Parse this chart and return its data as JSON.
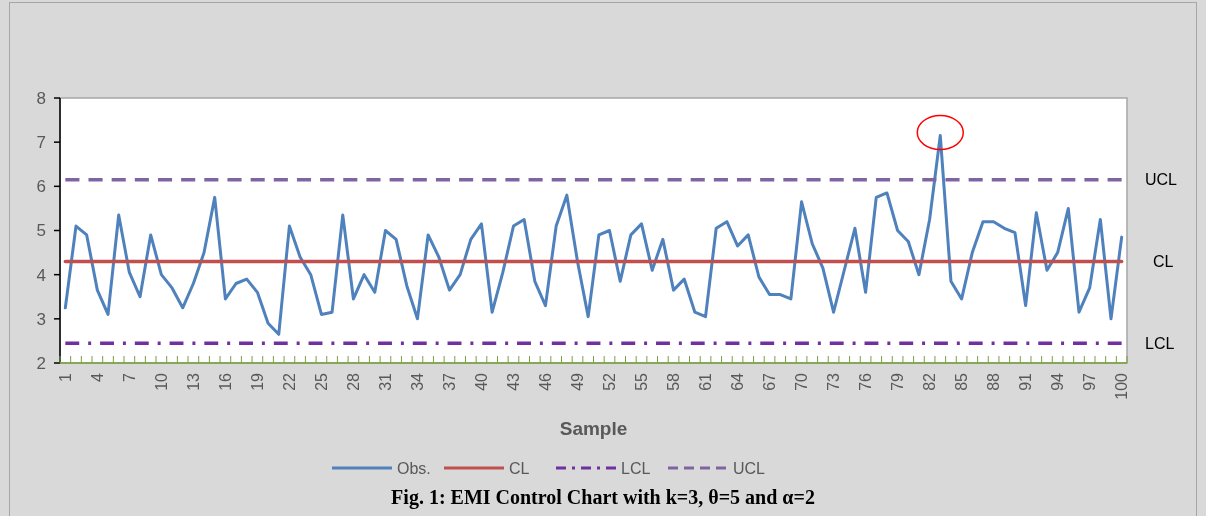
{
  "chart_data": {
    "type": "line",
    "title": "Fig. 1: EMI Control Chart with k=3, θ=5 and α=2",
    "xlabel": "Sample",
    "categories": [
      "1",
      null,
      null,
      "4",
      null,
      null,
      "7",
      null,
      null,
      "10",
      null,
      null,
      "13",
      null,
      null,
      "16",
      null,
      null,
      "19",
      null,
      null,
      "22",
      null,
      null,
      "25",
      null,
      null,
      "28",
      null,
      null,
      "31",
      null,
      null,
      "34",
      null,
      null,
      "37",
      null,
      null,
      "40",
      null,
      null,
      "43",
      null,
      null,
      "46",
      null,
      null,
      "49",
      null,
      null,
      "52",
      null,
      null,
      "55",
      null,
      null,
      "58",
      null,
      null,
      "61",
      null,
      null,
      "64",
      null,
      null,
      "67",
      null,
      null,
      "70",
      null,
      null,
      "73",
      null,
      null,
      "76",
      null,
      null,
      "79",
      null,
      null,
      "82",
      null,
      null,
      "85",
      null,
      null,
      "88",
      null,
      null,
      "91",
      null,
      null,
      "94",
      null,
      null,
      "97",
      null,
      null,
      "100"
    ],
    "series": [
      {
        "name": "Obs.",
        "color": "#4f81bd",
        "line_style": "solid",
        "values": [
          3.25,
          5.1,
          4.9,
          3.65,
          3.1,
          5.35,
          4.05,
          3.5,
          4.9,
          4.0,
          3.7,
          3.25,
          3.8,
          4.5,
          5.75,
          3.45,
          3.8,
          3.9,
          3.6,
          2.9,
          2.65,
          5.1,
          4.4,
          4.0,
          3.1,
          3.15,
          5.35,
          3.45,
          4.0,
          3.6,
          5.0,
          4.8,
          3.75,
          3.0,
          4.9,
          4.4,
          3.65,
          4.0,
          4.8,
          5.15,
          3.15,
          4.05,
          5.1,
          5.25,
          3.85,
          3.3,
          5.1,
          5.8,
          4.3,
          3.05,
          4.9,
          5.0,
          3.85,
          4.9,
          5.15,
          4.1,
          4.8,
          3.65,
          3.9,
          3.15,
          3.05,
          5.05,
          5.2,
          4.65,
          4.9,
          3.95,
          3.55,
          3.55,
          3.45,
          5.65,
          4.7,
          4.15,
          3.15,
          4.1,
          5.05,
          3.6,
          5.75,
          5.85,
          5.0,
          4.75,
          4.0,
          5.25,
          7.15,
          3.85,
          3.45,
          4.5,
          5.2,
          5.2,
          5.05,
          4.95,
          3.3,
          5.4,
          4.1,
          4.5,
          5.5,
          3.15,
          3.7,
          5.25,
          3.0,
          4.85
        ]
      },
      {
        "name": "CL",
        "color": "#c0504d",
        "line_style": "solid",
        "values": [
          4.3,
          4.3,
          4.3,
          4.3,
          4.3,
          4.3,
          4.3,
          4.3,
          4.3,
          4.3,
          4.3,
          4.3,
          4.3,
          4.3,
          4.3,
          4.3,
          4.3,
          4.3,
          4.3,
          4.3,
          4.3,
          4.3,
          4.3,
          4.3,
          4.3,
          4.3,
          4.3,
          4.3,
          4.3,
          4.3,
          4.3,
          4.3,
          4.3,
          4.3,
          4.3,
          4.3,
          4.3,
          4.3,
          4.3,
          4.3,
          4.3,
          4.3,
          4.3,
          4.3,
          4.3,
          4.3,
          4.3,
          4.3,
          4.3,
          4.3,
          4.3,
          4.3,
          4.3,
          4.3,
          4.3,
          4.3,
          4.3,
          4.3,
          4.3,
          4.3,
          4.3,
          4.3,
          4.3,
          4.3,
          4.3,
          4.3,
          4.3,
          4.3,
          4.3,
          4.3,
          4.3,
          4.3,
          4.3,
          4.3,
          4.3,
          4.3,
          4.3,
          4.3,
          4.3,
          4.3,
          4.3,
          4.3,
          4.3,
          4.3,
          4.3,
          4.3,
          4.3,
          4.3,
          4.3,
          4.3,
          4.3,
          4.3,
          4.3,
          4.3,
          4.3,
          4.3,
          4.3,
          4.3,
          4.3,
          4.3
        ]
      },
      {
        "name": "LCL",
        "color": "#7030a0",
        "line_style": "dashdot",
        "values": [
          2.45,
          2.45,
          2.45,
          2.45,
          2.45,
          2.45,
          2.45,
          2.45,
          2.45,
          2.45,
          2.45,
          2.45,
          2.45,
          2.45,
          2.45,
          2.45,
          2.45,
          2.45,
          2.45,
          2.45,
          2.45,
          2.45,
          2.45,
          2.45,
          2.45,
          2.45,
          2.45,
          2.45,
          2.45,
          2.45,
          2.45,
          2.45,
          2.45,
          2.45,
          2.45,
          2.45,
          2.45,
          2.45,
          2.45,
          2.45,
          2.45,
          2.45,
          2.45,
          2.45,
          2.45,
          2.45,
          2.45,
          2.45,
          2.45,
          2.45,
          2.45,
          2.45,
          2.45,
          2.45,
          2.45,
          2.45,
          2.45,
          2.45,
          2.45,
          2.45,
          2.45,
          2.45,
          2.45,
          2.45,
          2.45,
          2.45,
          2.45,
          2.45,
          2.45,
          2.45,
          2.45,
          2.45,
          2.45,
          2.45,
          2.45,
          2.45,
          2.45,
          2.45,
          2.45,
          2.45,
          2.45,
          2.45,
          2.45,
          2.45,
          2.45,
          2.45,
          2.45,
          2.45,
          2.45,
          2.45,
          2.45,
          2.45,
          2.45,
          2.45,
          2.45,
          2.45,
          2.45,
          2.45,
          2.45,
          2.45
        ]
      },
      {
        "name": "UCL",
        "color": "#8064a2",
        "line_style": "dashed",
        "values": [
          6.15,
          6.15,
          6.15,
          6.15,
          6.15,
          6.15,
          6.15,
          6.15,
          6.15,
          6.15,
          6.15,
          6.15,
          6.15,
          6.15,
          6.15,
          6.15,
          6.15,
          6.15,
          6.15,
          6.15,
          6.15,
          6.15,
          6.15,
          6.15,
          6.15,
          6.15,
          6.15,
          6.15,
          6.15,
          6.15,
          6.15,
          6.15,
          6.15,
          6.15,
          6.15,
          6.15,
          6.15,
          6.15,
          6.15,
          6.15,
          6.15,
          6.15,
          6.15,
          6.15,
          6.15,
          6.15,
          6.15,
          6.15,
          6.15,
          6.15,
          6.15,
          6.15,
          6.15,
          6.15,
          6.15,
          6.15,
          6.15,
          6.15,
          6.15,
          6.15,
          6.15,
          6.15,
          6.15,
          6.15,
          6.15,
          6.15,
          6.15,
          6.15,
          6.15,
          6.15,
          6.15,
          6.15,
          6.15,
          6.15,
          6.15,
          6.15,
          6.15,
          6.15,
          6.15,
          6.15,
          6.15,
          6.15,
          6.15,
          6.15,
          6.15,
          6.15,
          6.15,
          6.15,
          6.15,
          6.15,
          6.15,
          6.15,
          6.15,
          6.15,
          6.15,
          6.15,
          6.15,
          6.15,
          6.15,
          6.15
        ]
      }
    ],
    "annotations": [
      {
        "text": "UCL",
        "x": "100",
        "y": 6.15
      },
      {
        "text": "CL",
        "x": "100",
        "y": 4.3
      },
      {
        "text": "LCL",
        "x": "100",
        "y": 2.45
      }
    ],
    "ylim": [
      2,
      8
    ],
    "yticks": [
      2,
      3,
      4,
      5,
      6,
      7,
      8
    ],
    "grid": false,
    "legend": "bottom",
    "marker": "none"
  }
}
